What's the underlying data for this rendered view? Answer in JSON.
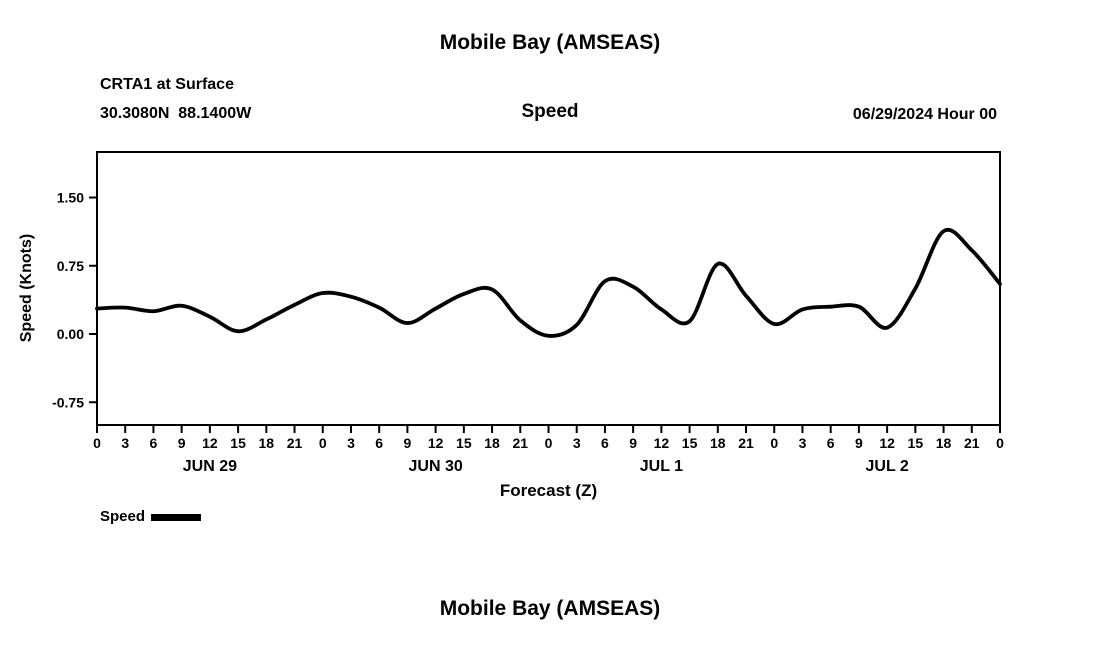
{
  "header": {
    "title": "Mobile Bay (AMSEAS)",
    "station_line1": "CRTA1 at Surface",
    "station_line2": "30.3080N  88.1400W",
    "datetime": "06/29/2024 Hour 00"
  },
  "footer": {
    "next_chart_title": "Mobile Bay (AMSEAS)"
  },
  "chart_data": {
    "type": "line",
    "title": "Speed",
    "xlabel": "Forecast (Z)",
    "ylabel": "Speed (Knots)",
    "legend": "Speed",
    "line_color": "#000000",
    "line_width": 3.8,
    "xlim": [
      0,
      96
    ],
    "ylim": [
      -1.0,
      2.0
    ],
    "x_hours": [
      0,
      3,
      6,
      9,
      12,
      15,
      18,
      21,
      24,
      27,
      30,
      33,
      36,
      39,
      42,
      45,
      48,
      51,
      54,
      57,
      60,
      63,
      66,
      69,
      72,
      75,
      78,
      81,
      84,
      87,
      90,
      93,
      96
    ],
    "values": [
      0.28,
      0.29,
      0.25,
      0.31,
      0.19,
      0.03,
      0.16,
      0.32,
      0.45,
      0.41,
      0.29,
      0.12,
      0.28,
      0.44,
      0.49,
      0.15,
      -0.02,
      0.1,
      0.58,
      0.52,
      0.27,
      0.14,
      0.77,
      0.42,
      0.11,
      0.27,
      0.3,
      0.3,
      0.07,
      0.5,
      1.13,
      0.92,
      0.55
    ],
    "xtick_labels": [
      "0",
      "3",
      "6",
      "9",
      "12",
      "15",
      "18",
      "21",
      "0",
      "3",
      "6",
      "9",
      "12",
      "15",
      "18",
      "21",
      "0",
      "3",
      "6",
      "9",
      "12",
      "15",
      "18",
      "21",
      "0",
      "3",
      "6",
      "9",
      "12",
      "15",
      "18",
      "21",
      "0"
    ],
    "yticks": [
      {
        "value": -0.75,
        "label": "-0.75"
      },
      {
        "value": 0.0,
        "label": "0.00"
      },
      {
        "value": 0.75,
        "label": "0.75"
      },
      {
        "value": 1.5,
        "label": "1.50"
      }
    ],
    "day_labels": [
      {
        "label": "JUN 29",
        "hour": 12
      },
      {
        "label": "JUN 30",
        "hour": 36
      },
      {
        "label": "JUL 1",
        "hour": 60
      },
      {
        "label": "JUL 2",
        "hour": 84
      }
    ],
    "grid": false,
    "legend_position": "bottom-left"
  }
}
